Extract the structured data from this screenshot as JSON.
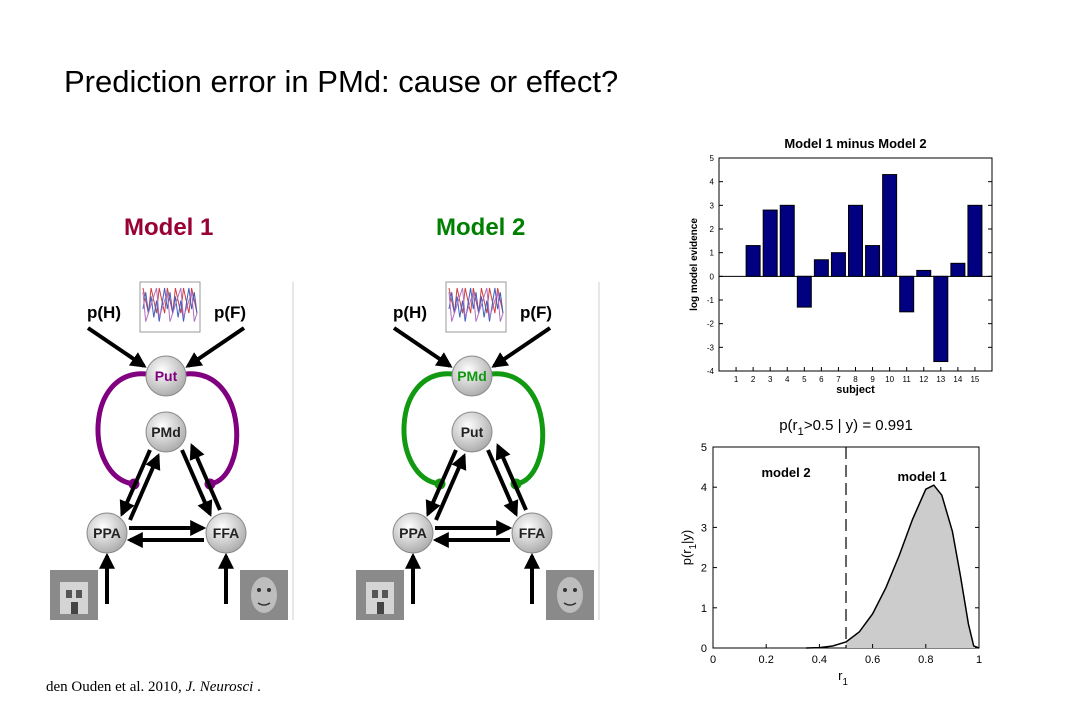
{
  "slide": {
    "title": "Prediction error in PMd: cause or effect?",
    "citation_authors": "den Ouden et al. 2010,",
    "citation_journal": "J. Neurosci",
    "citation_end": " ."
  },
  "models": [
    {
      "title": "Model 1",
      "title_color": "#990033",
      "loop_color": "#800080",
      "nodes": {
        "top": "Put",
        "middle": "PMd",
        "left": "PPA",
        "right": "FFA"
      },
      "inputs": {
        "left": "p(H)",
        "right": "p(F)"
      }
    },
    {
      "title": "Model 2",
      "title_color": "#008000",
      "loop_color": "#119911",
      "nodes": {
        "top": "PMd",
        "middle": "Put",
        "left": "PPA",
        "right": "FFA"
      },
      "inputs": {
        "left": "p(H)",
        "right": "p(F)"
      }
    }
  ],
  "chart_data": [
    {
      "type": "bar",
      "title": "Model 1 minus Model 2",
      "xlabel": "subject",
      "ylabel": "log model evidence",
      "categories": [
        "1",
        "2",
        "3",
        "4",
        "5",
        "6",
        "7",
        "8",
        "9",
        "10",
        "11",
        "12",
        "13",
        "14",
        "15"
      ],
      "values": [
        0,
        1.3,
        2.8,
        3.0,
        -1.3,
        0.7,
        1.0,
        3.0,
        1.3,
        4.3,
        -1.5,
        0.25,
        -3.6,
        0.55,
        3.0
      ],
      "ylim": [
        -4,
        5
      ],
      "yticks": [
        "-4",
        "-3",
        "-2",
        "-1",
        "0",
        "1",
        "2",
        "3",
        "4",
        "5"
      ],
      "bar_color": "#000080"
    },
    {
      "type": "area",
      "title": "p(r1>0.5 | y) = 0.991",
      "title_parts": [
        "p(r",
        "1",
        ">0.5 | y) = 0.991"
      ],
      "xlabel_parts": [
        "r",
        "1"
      ],
      "ylabel_parts": [
        "p(r",
        "1",
        "|y)"
      ],
      "xlim": [
        0,
        1
      ],
      "ylim": [
        0,
        5
      ],
      "xticks": [
        "0",
        "0.2",
        "0.4",
        "0.6",
        "0.8",
        "1"
      ],
      "yticks": [
        "0",
        "1",
        "2",
        "3",
        "4",
        "5"
      ],
      "threshold": 0.5,
      "region_labels": [
        "model 2",
        "model 1"
      ],
      "fill_color": "#cccccc",
      "x": [
        0.35,
        0.4,
        0.45,
        0.5,
        0.55,
        0.6,
        0.65,
        0.7,
        0.75,
        0.8,
        0.83,
        0.86,
        0.9,
        0.93,
        0.96,
        0.98,
        1.0
      ],
      "y": [
        0,
        0.01,
        0.05,
        0.15,
        0.4,
        0.85,
        1.5,
        2.3,
        3.2,
        3.95,
        4.05,
        3.8,
        2.9,
        1.8,
        0.6,
        0.05,
        0
      ]
    }
  ]
}
